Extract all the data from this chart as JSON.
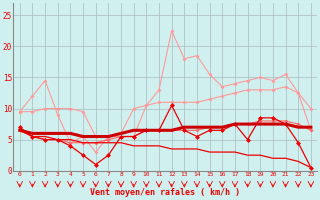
{
  "x": [
    0,
    1,
    2,
    3,
    4,
    5,
    6,
    7,
    8,
    9,
    10,
    11,
    12,
    13,
    14,
    15,
    16,
    17,
    18,
    19,
    20,
    21,
    22,
    23
  ],
  "s1_light_spiky": [
    9.5,
    12.0,
    14.5,
    9.0,
    4.5,
    5.5,
    3.0,
    5.5,
    5.5,
    5.5,
    10.5,
    13.0,
    22.5,
    18.0,
    18.5,
    15.5,
    13.5,
    14.0,
    14.5,
    15.0,
    14.5,
    15.5,
    12.5,
    6.5
  ],
  "s2_dark_spiky": [
    7.0,
    5.5,
    5.0,
    5.0,
    4.0,
    2.5,
    1.0,
    2.5,
    5.5,
    5.5,
    6.5,
    6.5,
    10.5,
    6.5,
    5.5,
    6.5,
    6.5,
    7.5,
    5.0,
    8.5,
    8.5,
    7.5,
    4.5,
    0.5
  ],
  "s3_dark_smooth": [
    6.5,
    6.0,
    6.0,
    6.0,
    6.0,
    5.5,
    5.5,
    5.5,
    6.0,
    6.5,
    6.5,
    6.5,
    6.5,
    7.0,
    7.0,
    7.0,
    7.0,
    7.5,
    7.5,
    7.5,
    7.5,
    7.5,
    7.0,
    7.0
  ],
  "s4_light_smooth_upper": [
    9.5,
    9.5,
    10.0,
    10.0,
    10.0,
    9.5,
    5.5,
    5.5,
    6.0,
    10.0,
    10.5,
    11.0,
    11.0,
    11.0,
    11.0,
    11.5,
    12.0,
    12.5,
    13.0,
    13.0,
    13.0,
    13.5,
    12.5,
    10.0
  ],
  "s5_light_medium": [
    6.5,
    5.5,
    5.0,
    5.0,
    4.5,
    4.5,
    4.5,
    5.0,
    5.5,
    5.5,
    6.5,
    6.5,
    6.5,
    6.5,
    6.5,
    7.0,
    7.0,
    7.5,
    7.5,
    8.0,
    8.0,
    8.0,
    7.5,
    6.5
  ],
  "s6_dark_declining": [
    6.5,
    5.5,
    5.5,
    5.0,
    5.0,
    4.5,
    4.5,
    4.5,
    4.5,
    4.0,
    4.0,
    4.0,
    3.5,
    3.5,
    3.5,
    3.0,
    3.0,
    3.0,
    2.5,
    2.5,
    2.0,
    2.0,
    1.5,
    0.5
  ],
  "color_light": "#FF9999",
  "color_mid": "#FF6666",
  "color_dark": "#EE0000",
  "color_thick": "#CC0000",
  "bg_color": "#D0F0F0",
  "grid_color": "#AABBBB",
  "xlabel": "Vent moyen/en rafales ( km/h )",
  "xlim": [
    -0.5,
    23.5
  ],
  "ylim": [
    0,
    27
  ],
  "yticks": [
    0,
    5,
    10,
    15,
    20,
    25
  ],
  "xticks": [
    0,
    1,
    2,
    3,
    4,
    5,
    6,
    7,
    8,
    9,
    10,
    11,
    12,
    13,
    14,
    15,
    16,
    17,
    18,
    19,
    20,
    21,
    22,
    23
  ]
}
